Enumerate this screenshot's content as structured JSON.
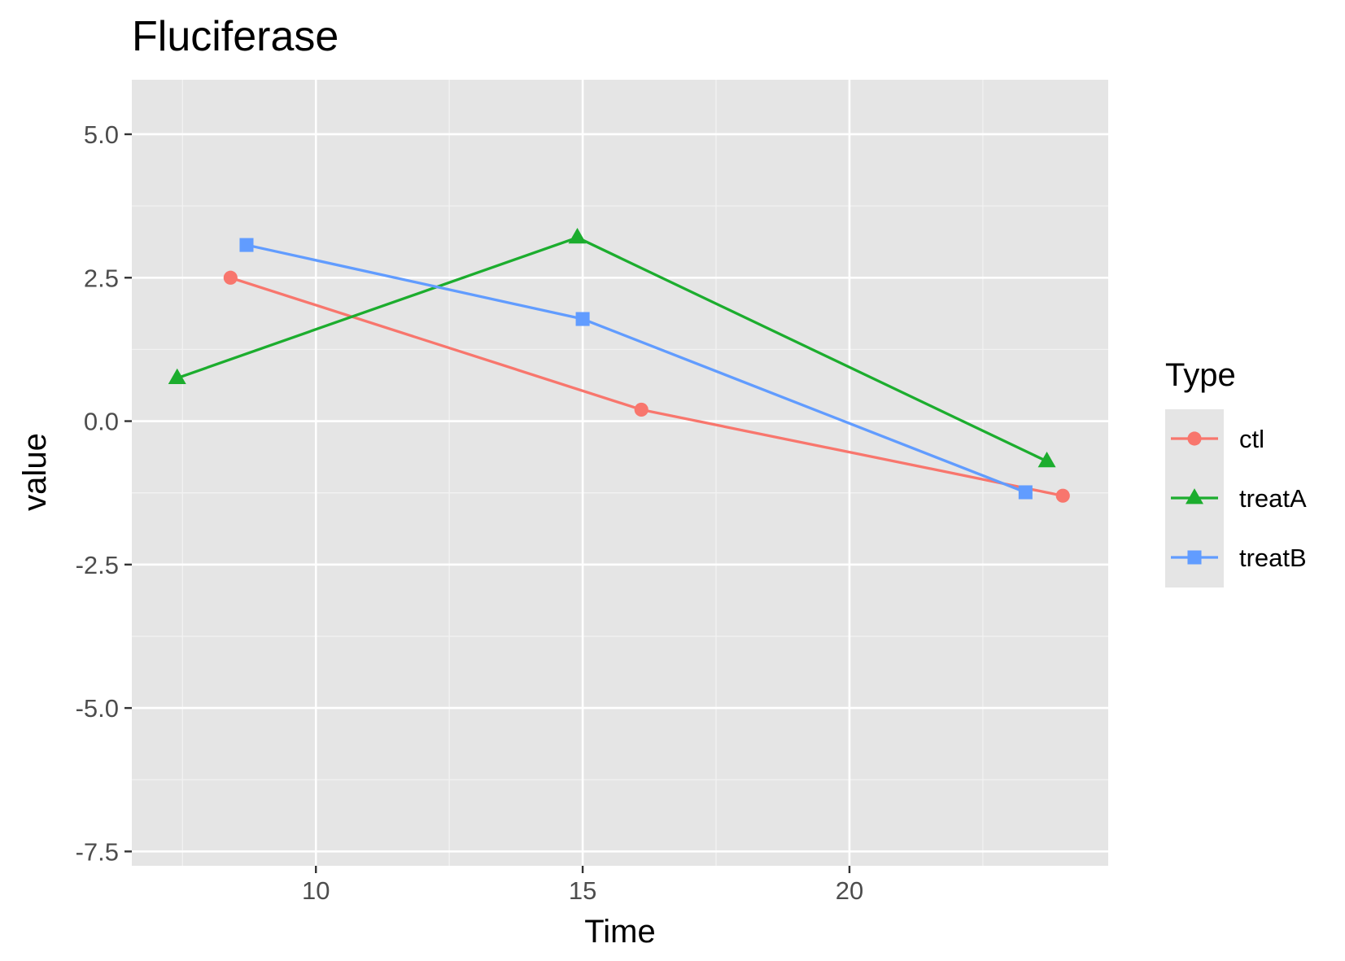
{
  "colors": {
    "panel_bg": "#e5e5e5",
    "grid_major": "#ffffff",
    "grid_minor": "#f2f2f2",
    "tick": "#333333"
  },
  "chart_data": {
    "type": "line",
    "title": "Fluciferase",
    "xlabel": "Time",
    "ylabel": "value",
    "xlim": [
      6.55,
      24.85
    ],
    "ylim": [
      -7.75,
      5.95
    ],
    "x_ticks": [
      10,
      15,
      20
    ],
    "x_tick_labels": [
      "10",
      "15",
      "20"
    ],
    "y_ticks": [
      5.0,
      2.5,
      0.0,
      -2.5,
      -5.0,
      -7.5
    ],
    "y_tick_labels": [
      "5.0",
      "2.5",
      "0.0",
      "-2.5",
      "-5.0",
      "-7.5"
    ],
    "grid": true,
    "legend": {
      "title": "Type",
      "position": "right"
    },
    "series": [
      {
        "name": "ctl",
        "color": "#f8766d",
        "marker": "circle",
        "x": [
          8.4,
          16.1,
          24.0
        ],
        "y": [
          2.5,
          0.2,
          -1.3
        ]
      },
      {
        "name": "treatA",
        "color": "#1cad2e",
        "marker": "triangle",
        "x": [
          7.4,
          14.9,
          23.7
        ],
        "y": [
          0.75,
          3.2,
          -0.7
        ]
      },
      {
        "name": "treatB",
        "color": "#619cff",
        "marker": "square",
        "x": [
          8.7,
          15.0,
          23.3
        ],
        "y": [
          3.07,
          1.78,
          -1.24
        ]
      }
    ]
  }
}
